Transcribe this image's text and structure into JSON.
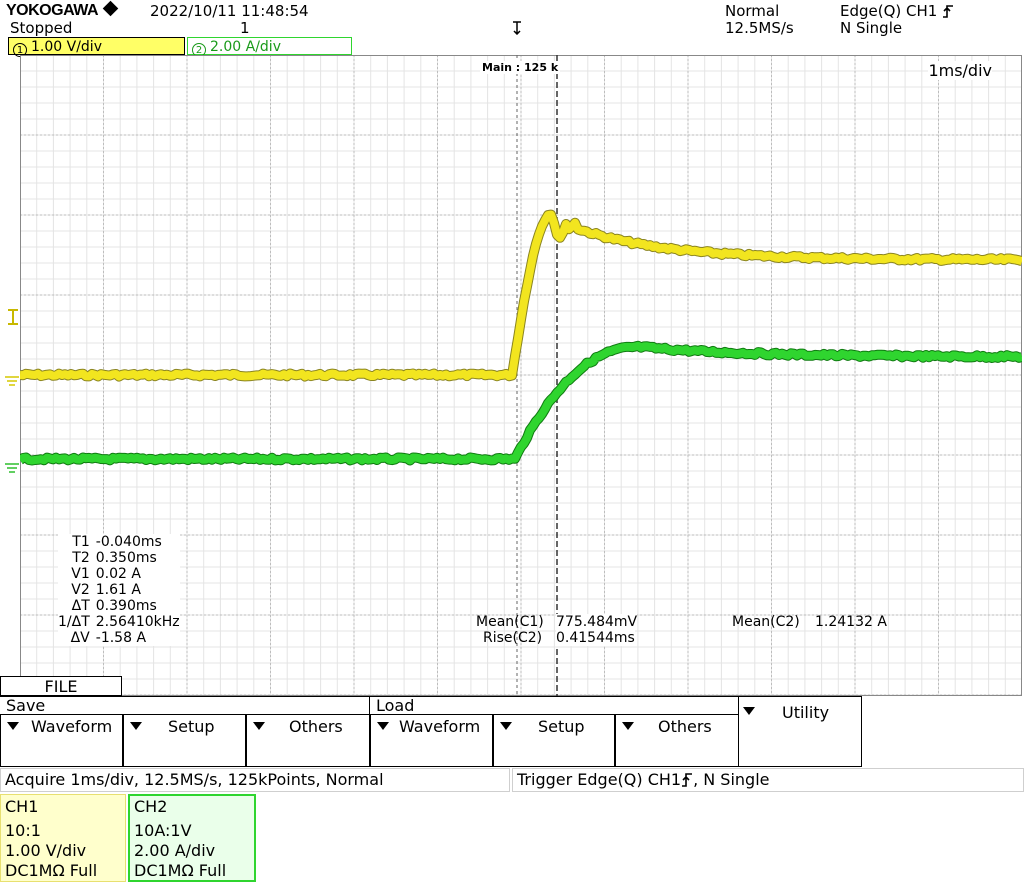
{
  "header": {
    "logo": "YOKOGAWA",
    "datetime": "2022/10/11  11:48:54",
    "run_state": "Stopped",
    "acq_count": "1",
    "trigger_mode": "Normal",
    "sample_rate": "12.5MS/s",
    "trigger_type": "Edge(Q) CH1",
    "trigger_single": "N Single"
  },
  "channels_bar": {
    "ch1_num": "1",
    "ch1_scale": "1.00 V/div",
    "ch2_num": "2",
    "ch2_scale": "2.00 A/div"
  },
  "screen": {
    "record_label": "Main : 125 k",
    "timebase": "1ms/div"
  },
  "cursor_measurements": {
    "labels": [
      "T1",
      "T2",
      "V1",
      "V2",
      "ΔT",
      "1/ΔT",
      "ΔV"
    ],
    "values": [
      "-0.040ms",
      "0.350ms",
      "0.02 A",
      "1.61 A",
      "0.390ms",
      "2.56410kHz",
      "-1.58 A"
    ]
  },
  "auto_measurements": {
    "mean_c1_label": "Mean(C1)",
    "mean_c1_value": "775.484mV",
    "rise_c2_label": "Rise(C2)",
    "rise_c2_value": "0.41544ms",
    "mean_c2_label": "Mean(C2)",
    "mean_c2_value": "1.24132 A"
  },
  "menu": {
    "file_tab": "FILE",
    "save_title": "Save",
    "load_title": "Load",
    "save_waveform": "Waveform",
    "save_setup": "Setup",
    "save_others": "Others",
    "load_waveform": "Waveform",
    "load_setup": "Setup",
    "load_others": "Others",
    "utility": "Utility"
  },
  "status_bar": {
    "acquire": "Acquire 1ms/div, 12.5MS/s, 125kPoints, Normal",
    "trigger": "Trigger Edge(Q)  CH1",
    "trigger_suffix": ", N Single"
  },
  "channel_info": {
    "ch1": {
      "title": "CH1",
      "probe": "10:1",
      "scale": "1.00 V/div",
      "coupling": "DC1MΩ Full"
    },
    "ch2": {
      "title": "CH2",
      "probe": "10A:1V",
      "scale": "2.00 A/div",
      "coupling": "DC1MΩ Full"
    }
  },
  "colors": {
    "ch1": "#f2e51f",
    "ch1_dark": "#8a8420",
    "ch2": "#2fd52f",
    "ch2_dark": "#0f7a10",
    "grid": "#bdbdbd",
    "ch1_bg": "#ffff66",
    "ch1_info_bg": "#ffffcc",
    "ch2_info_bg": "#eaffea"
  },
  "icons": [
    "diamond-logo-icon",
    "trigger-position-icon",
    "rising-edge-icon",
    "trigger-level-icon",
    "ground-marker-icon"
  ]
}
